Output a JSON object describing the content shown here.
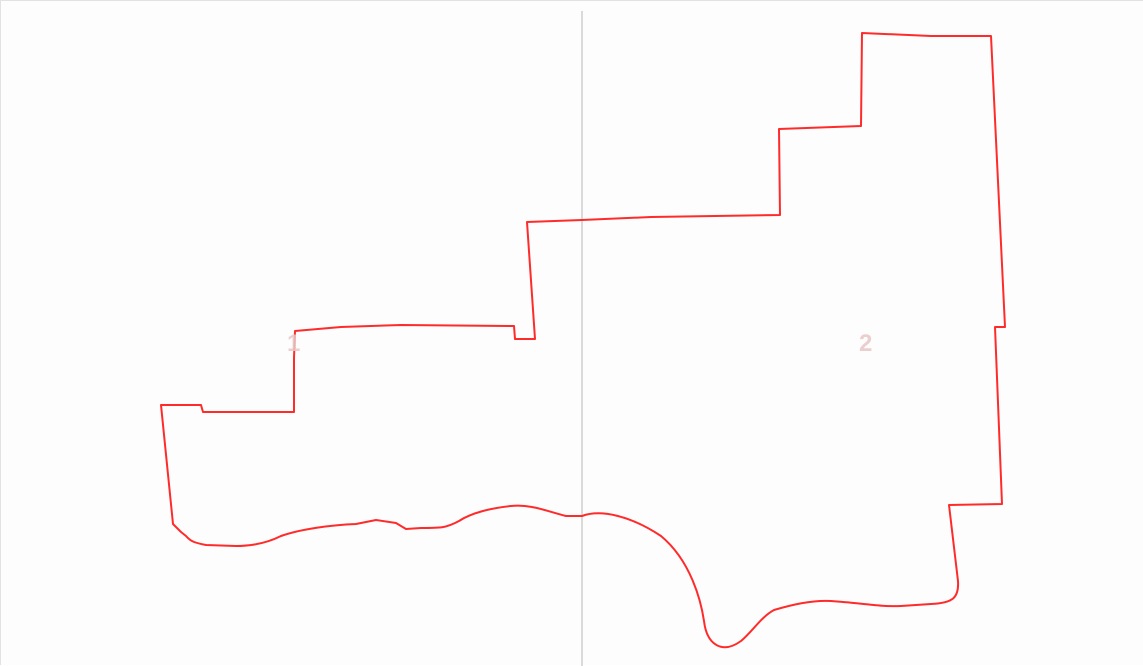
{
  "map": {
    "page_labels": [
      "1",
      "2"
    ],
    "colors": {
      "boundary": "#ff2b2b",
      "label": "#e8c8c8",
      "divider": "#cfcfcf",
      "background": "#fdfdfd"
    }
  }
}
